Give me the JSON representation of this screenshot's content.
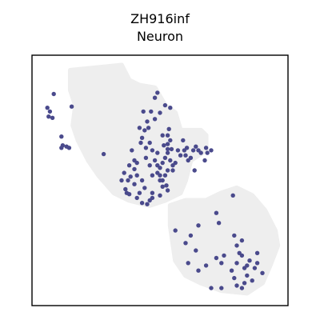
{
  "chart_data": {
    "type": "scatter",
    "title": "ZH916inf",
    "subtitle": "Neuron",
    "xlabel": "",
    "ylabel": "",
    "axes_visible": false,
    "grid": false,
    "xlim": [
      0,
      100
    ],
    "ylim": [
      0,
      100
    ],
    "colors": {
      "background_tissue": "#eeeeee",
      "highlight": "#4a4a8c",
      "frame": "#000000"
    },
    "background_regions": [
      {
        "name": "upper-left-tissue",
        "outline": [
          [
            15,
            94
          ],
          [
            35,
            96
          ],
          [
            38,
            90
          ],
          [
            42,
            88
          ],
          [
            48,
            87
          ],
          [
            52,
            80
          ],
          [
            56,
            77
          ],
          [
            58,
            70
          ],
          [
            66,
            70
          ],
          [
            68,
            68
          ],
          [
            68,
            62
          ],
          [
            62,
            58
          ],
          [
            60,
            50
          ],
          [
            58,
            45
          ],
          [
            52,
            42
          ],
          [
            46,
            40
          ],
          [
            38,
            42
          ],
          [
            32,
            45
          ],
          [
            26,
            52
          ],
          [
            22,
            58
          ],
          [
            18,
            66
          ],
          [
            16,
            72
          ],
          [
            17,
            80
          ],
          [
            15,
            86
          ]
        ]
      },
      {
        "name": "lower-right-tissue",
        "outline": [
          [
            54,
            40
          ],
          [
            60,
            42
          ],
          [
            68,
            42
          ],
          [
            74,
            45
          ],
          [
            80,
            47
          ],
          [
            86,
            44
          ],
          [
            91,
            38
          ],
          [
            95,
            30
          ],
          [
            96,
            24
          ],
          [
            93,
            16
          ],
          [
            90,
            9
          ],
          [
            84,
            5
          ],
          [
            74,
            6
          ],
          [
            66,
            9
          ],
          [
            60,
            12
          ],
          [
            56,
            18
          ],
          [
            55,
            25
          ],
          [
            54,
            32
          ]
        ]
      }
    ],
    "series": [
      {
        "points": [
          [
            8.5,
            84.5
          ],
          [
            6,
            79
          ],
          [
            7,
            77.5
          ],
          [
            6.5,
            75.5
          ],
          [
            8,
            75
          ],
          [
            15.5,
            79.5
          ],
          [
            11.5,
            67.5
          ],
          [
            12,
            64
          ],
          [
            13.5,
            63.5
          ],
          [
            14.5,
            63
          ],
          [
            11.5,
            63
          ],
          [
            28,
            60.5
          ],
          [
            39,
            62
          ],
          [
            43,
            67
          ],
          [
            44,
            70
          ],
          [
            45,
            73.5
          ],
          [
            48,
            74.5
          ],
          [
            50,
            77
          ],
          [
            52,
            80
          ],
          [
            54,
            79
          ],
          [
            49,
            85
          ],
          [
            48,
            83
          ],
          [
            43.5,
            77.5
          ],
          [
            46.5,
            77.5
          ],
          [
            42,
            71
          ],
          [
            45.5,
            71
          ],
          [
            44.5,
            63
          ],
          [
            42.5,
            65
          ],
          [
            46,
            65
          ],
          [
            47,
            62
          ],
          [
            49,
            61
          ],
          [
            46,
            56
          ],
          [
            44.5,
            59
          ],
          [
            41,
            57
          ],
          [
            40,
            54.5
          ],
          [
            38.5,
            51.5
          ],
          [
            37.5,
            50
          ],
          [
            40,
            48.5
          ],
          [
            41,
            52
          ],
          [
            43,
            50
          ],
          [
            44,
            47
          ],
          [
            42,
            45
          ],
          [
            41,
            43
          ],
          [
            43,
            41
          ],
          [
            45,
            40.5
          ],
          [
            46,
            42
          ],
          [
            47,
            45
          ],
          [
            50,
            44
          ],
          [
            37,
            45
          ],
          [
            36.5,
            46.5
          ],
          [
            38,
            44.5
          ],
          [
            49,
            53
          ],
          [
            50,
            55
          ],
          [
            51,
            57
          ],
          [
            52,
            59
          ],
          [
            53,
            61
          ],
          [
            54,
            58
          ],
          [
            55,
            56
          ],
          [
            56,
            57
          ],
          [
            55,
            54
          ],
          [
            53,
            54
          ],
          [
            52,
            52
          ],
          [
            51,
            50
          ],
          [
            50,
            52
          ],
          [
            49,
            56
          ],
          [
            48,
            58
          ],
          [
            47,
            52
          ],
          [
            53,
            62.5
          ],
          [
            51.5,
            64
          ],
          [
            53,
            64.5
          ],
          [
            51,
            68
          ],
          [
            53,
            68
          ],
          [
            54,
            66
          ],
          [
            54.5,
            62.5
          ],
          [
            53.5,
            70.5
          ],
          [
            57,
            62
          ],
          [
            58,
            60
          ],
          [
            59,
            66
          ],
          [
            59.5,
            62
          ],
          [
            60,
            60
          ],
          [
            61,
            58
          ],
          [
            63,
            62
          ],
          [
            64,
            63.5
          ],
          [
            65,
            62
          ],
          [
            66,
            61
          ],
          [
            68,
            63
          ],
          [
            68.5,
            61
          ],
          [
            70,
            62
          ],
          [
            67.5,
            58
          ],
          [
            62,
            59
          ],
          [
            60.5,
            63
          ],
          [
            63.5,
            54
          ],
          [
            53,
            46
          ],
          [
            47,
            43
          ],
          [
            35,
            50
          ],
          [
            36,
            53
          ],
          [
            38,
            56
          ],
          [
            40,
            58
          ],
          [
            51,
            47.5
          ],
          [
            52.5,
            48
          ],
          [
            50,
            50
          ],
          [
            78.5,
            44
          ],
          [
            72,
            37
          ],
          [
            56,
            30
          ],
          [
            62,
            28
          ],
          [
            65,
            32
          ],
          [
            73,
            33
          ],
          [
            79,
            28
          ],
          [
            80,
            24
          ],
          [
            81,
            21
          ],
          [
            82,
            26
          ],
          [
            60,
            25
          ],
          [
            61,
            17
          ],
          [
            72,
            19
          ],
          [
            64,
            22
          ],
          [
            74,
            17
          ],
          [
            75,
            20
          ],
          [
            78,
            14
          ],
          [
            80,
            17
          ],
          [
            82,
            20
          ],
          [
            84,
            16
          ],
          [
            88,
            17
          ],
          [
            90,
            13
          ],
          [
            86,
            10
          ],
          [
            83,
            9
          ],
          [
            82,
            7
          ],
          [
            80,
            8
          ],
          [
            74,
            7
          ],
          [
            70,
            7
          ],
          [
            65,
            14
          ],
          [
            68,
            16
          ],
          [
            85,
            18
          ],
          [
            87,
            15
          ],
          [
            88,
            21
          ],
          [
            79,
            11
          ],
          [
            84,
            12
          ],
          [
            83,
            15
          ]
        ]
      }
    ]
  }
}
